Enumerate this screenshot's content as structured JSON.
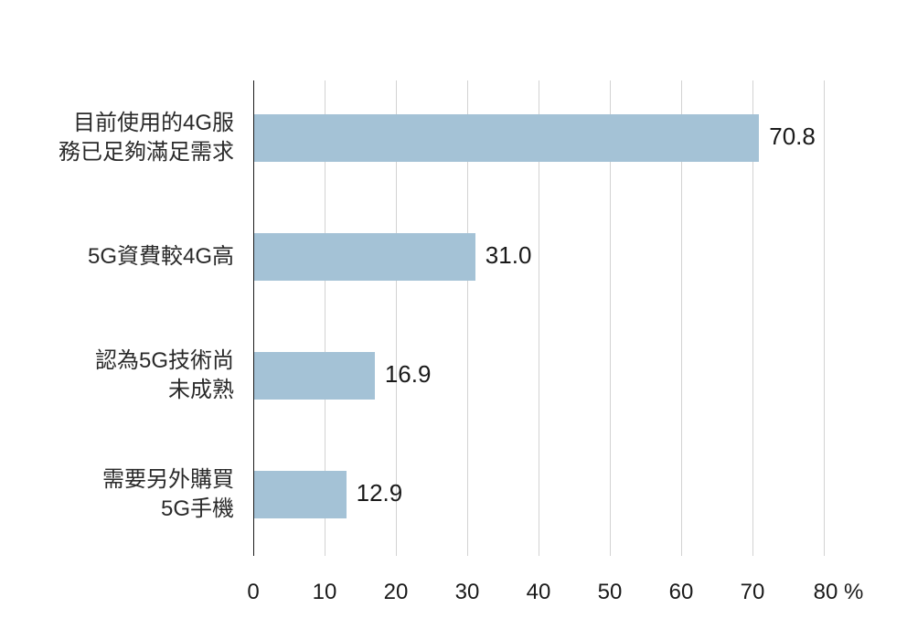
{
  "chart_data": {
    "type": "bar",
    "orientation": "horizontal",
    "title": "",
    "xlabel": "%",
    "ylabel": "",
    "xlim": [
      0,
      80
    ],
    "xticks": [
      0,
      10,
      20,
      30,
      40,
      50,
      60,
      70,
      80
    ],
    "xtick_labels": [
      "0",
      "10",
      "20",
      "30",
      "40",
      "50",
      "60",
      "70",
      "80 %"
    ],
    "grid": true,
    "legend": null,
    "bar_color": "#a4c2d6",
    "categories": [
      "目前使用的4G服\n務已足夠滿足需求",
      "5G資費較4G高",
      "認為5G技術尚\n未成熟",
      "需要另外購買\n5G手機"
    ],
    "values": [
      70.8,
      31.0,
      16.9,
      12.9
    ],
    "value_labels": [
      "70.8",
      "31.0",
      "16.9",
      "12.9"
    ]
  }
}
